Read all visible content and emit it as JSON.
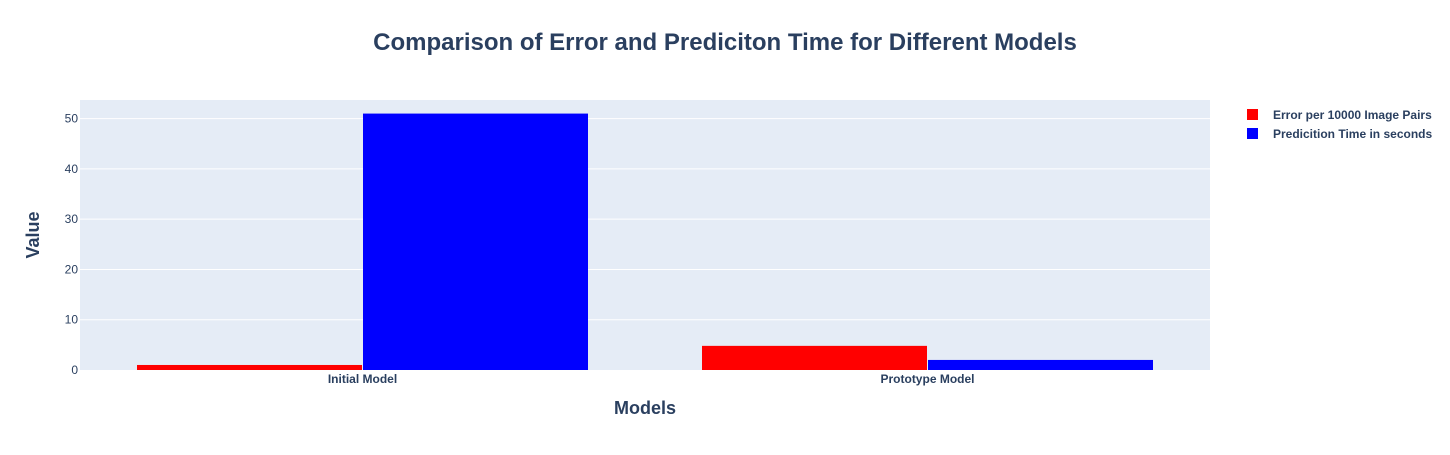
{
  "chart_data": {
    "type": "bar",
    "title": "Comparison of Error and Prediciton Time for Different Models",
    "xlabel": "Models",
    "ylabel": "Value",
    "categories": [
      "Initial Model",
      "Prototype Model"
    ],
    "series": [
      {
        "name": "Error per 10000 Image Pairs",
        "values": [
          1,
          4.8
        ],
        "color": "#ff0000"
      },
      {
        "name": "Predicition Time in seconds",
        "values": [
          51,
          2
        ],
        "color": "#0000ff"
      }
    ],
    "ylim": [
      0,
      53.7
    ],
    "yticks": [
      0,
      10,
      20,
      30,
      40,
      50
    ],
    "grid": true,
    "legend_position": "top-right",
    "plot_background": "#e5ecf6",
    "text_color": "#2a3f5f"
  }
}
